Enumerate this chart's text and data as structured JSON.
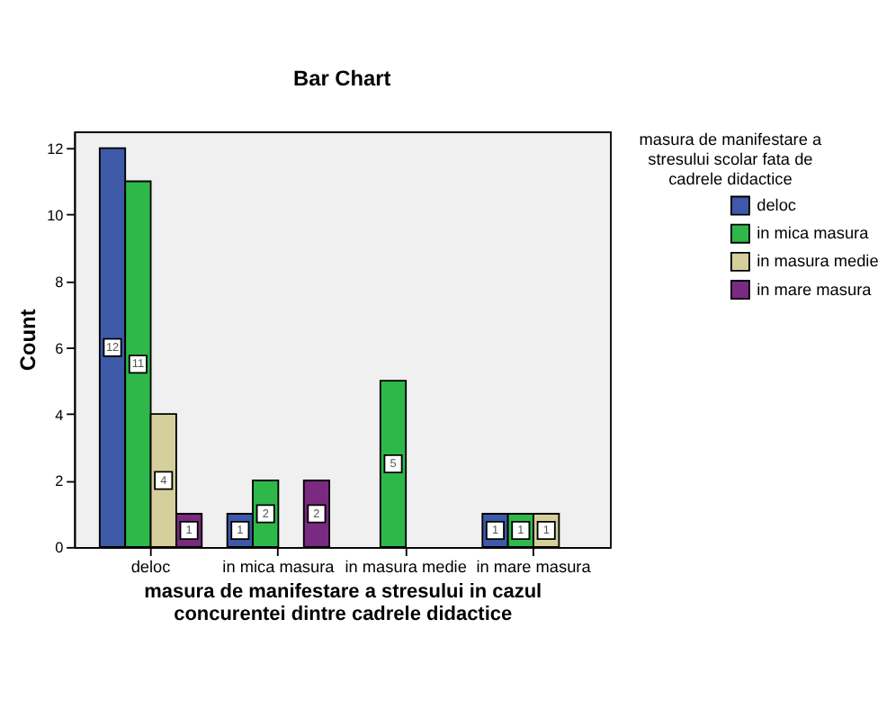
{
  "chart_data": {
    "type": "bar",
    "title": "Bar Chart",
    "xlabel": "masura de manifestare a stresului in cazul concurentei dintre cadrele didactice",
    "ylabel": "Count",
    "legend_title": "masura de manifestare a stresului scolar fata de cadrele didactice",
    "categories": [
      "deloc",
      "in mica masura",
      "in masura medie",
      "in mare masura"
    ],
    "series": [
      {
        "name": "deloc",
        "color": "#3e59a8",
        "values": [
          12,
          1,
          null,
          1
        ]
      },
      {
        "name": "in mica masura",
        "color": "#2fb84a",
        "values": [
          11,
          2,
          5,
          1
        ]
      },
      {
        "name": "in masura medie",
        "color": "#d4cf9b",
        "values": [
          4,
          null,
          null,
          1
        ]
      },
      {
        "name": "in mare masura",
        "color": "#7a2a80",
        "values": [
          1,
          2,
          null,
          null
        ]
      }
    ],
    "ylim": [
      0,
      12.5
    ],
    "yticks": [
      0,
      2,
      4,
      6,
      8,
      10,
      12
    ],
    "grid": false,
    "legend": "top right",
    "data_labels": true
  }
}
